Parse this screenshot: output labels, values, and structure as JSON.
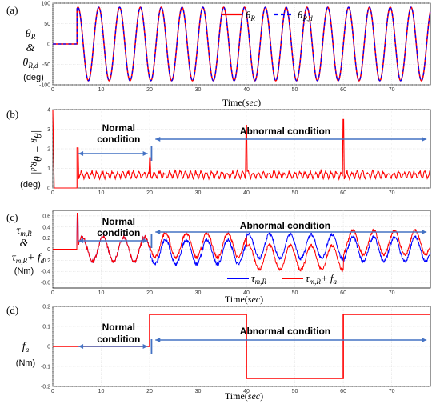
{
  "chart_data": [
    {
      "panel_label": "(a)",
      "type": "line",
      "ylabel_lines": [
        "θR",
        "&",
        "θR,d",
        "(deg)"
      ],
      "xlabel": "Time(sec)",
      "xlim": [
        0,
        78
      ],
      "ylim": [
        -100,
        100
      ],
      "x_ticks": [
        0,
        10,
        20,
        30,
        40,
        50,
        60,
        70
      ],
      "y_ticks": [
        -100,
        -50,
        0,
        50,
        100
      ],
      "grid": true,
      "legend_position": "top-right",
      "legend": [
        "θR",
        "θR,d"
      ],
      "series": [
        {
          "name": "θR",
          "color": "#ff0000",
          "style": "solid",
          "description_params": {
            "onset": 5,
            "amplitude": 90,
            "period": 4.3
          }
        },
        {
          "name": "θR,d",
          "color": "#0000ff",
          "style": "dashed",
          "description_params": {
            "onset": 5,
            "amplitude": 90,
            "period": 4.3
          }
        }
      ]
    },
    {
      "panel_label": "(b)",
      "type": "line",
      "ylabel_lines": [
        "|θR − θR,d|",
        "(deg)"
      ],
      "xlabel": "",
      "xlim": [
        0,
        78
      ],
      "ylim": [
        0,
        4
      ],
      "x_ticks": [
        0,
        10,
        20,
        30,
        40,
        50,
        60,
        70
      ],
      "y_ticks": [
        0,
        1,
        2,
        3,
        4
      ],
      "grid": true,
      "series": [
        {
          "color": "#ff0000",
          "baseline": 0.5,
          "spikes": [
            [
              0,
              4
            ],
            [
              5,
              2.05
            ],
            [
              20,
              1.55
            ],
            [
              40,
              3.2
            ],
            [
              60,
              3.5
            ]
          ]
        }
      ],
      "annotations": [
        {
          "text": "Normal",
          "x": 13
        },
        {
          "text": "condition",
          "x": 13
        },
        {
          "text": "Abnormal condition",
          "x": 48
        }
      ],
      "normal_range": [
        0,
        20
      ],
      "abnormal_range": [
        20,
        78
      ]
    },
    {
      "panel_label": "(c)",
      "type": "line",
      "ylabel_lines": [
        "τm,R",
        "&",
        "τm,R+ fd",
        "(Nm)"
      ],
      "xlabel": "Time(sec)",
      "xlim": [
        0,
        78
      ],
      "ylim": [
        -0.7,
        0.7
      ],
      "x_ticks": [
        0,
        10,
        20,
        30,
        40,
        50,
        60,
        70
      ],
      "y_ticks": [
        -0.6,
        -0.4,
        -0.2,
        0,
        0.2,
        0.4,
        0.6
      ],
      "grid": true,
      "legend_position": "bottom-right",
      "legend": [
        "τm,R",
        "τm,R+ fa"
      ],
      "series": [
        {
          "name": "τm,R",
          "color": "#0000ff",
          "offset_after_fault": -0.16
        },
        {
          "name": "τm,R+ fa",
          "color": "#ff0000",
          "offset_after_fault": 0.0
        }
      ],
      "annotations": [
        {
          "text": "Normal",
          "x": 13
        },
        {
          "text": "condition",
          "x": 13
        },
        {
          "text": "Abnormal condition",
          "x": 48
        }
      ]
    },
    {
      "panel_label": "(d)",
      "type": "line",
      "ylabel_lines": [
        "fa",
        "(Nm)"
      ],
      "xlabel": "Time(sec)",
      "xlim": [
        0,
        78
      ],
      "ylim": [
        -0.2,
        0.2
      ],
      "x_ticks": [
        0,
        10,
        20,
        30,
        40,
        50,
        60,
        70
      ],
      "y_ticks": [
        -0.2,
        -0.1,
        0,
        0.1,
        0.2
      ],
      "grid": true,
      "series": [
        {
          "color": "#ff0000",
          "points": [
            [
              0,
              0
            ],
            [
              20,
              0
            ],
            [
              20,
              0.16
            ],
            [
              40,
              0.16
            ],
            [
              40,
              -0.16
            ],
            [
              60,
              -0.16
            ],
            [
              60,
              0.16
            ],
            [
              78,
              0.16
            ]
          ]
        }
      ],
      "annotations": [
        {
          "text": "Normal",
          "x": 13
        },
        {
          "text": "condition",
          "x": 13
        },
        {
          "text": "Abnormal condition",
          "x": 48
        }
      ]
    }
  ],
  "ui": {
    "xlabel_a": "Time(sec)",
    "xlabel_c": "Time(sec)",
    "xlabel_d": "Time(sec)",
    "panel_a": "(a)",
    "panel_b": "(b)",
    "panel_c": "(c)",
    "panel_d": "(d)",
    "normal1": "Normal",
    "normal2": "condition",
    "abnormal": "Abnormal condition"
  }
}
